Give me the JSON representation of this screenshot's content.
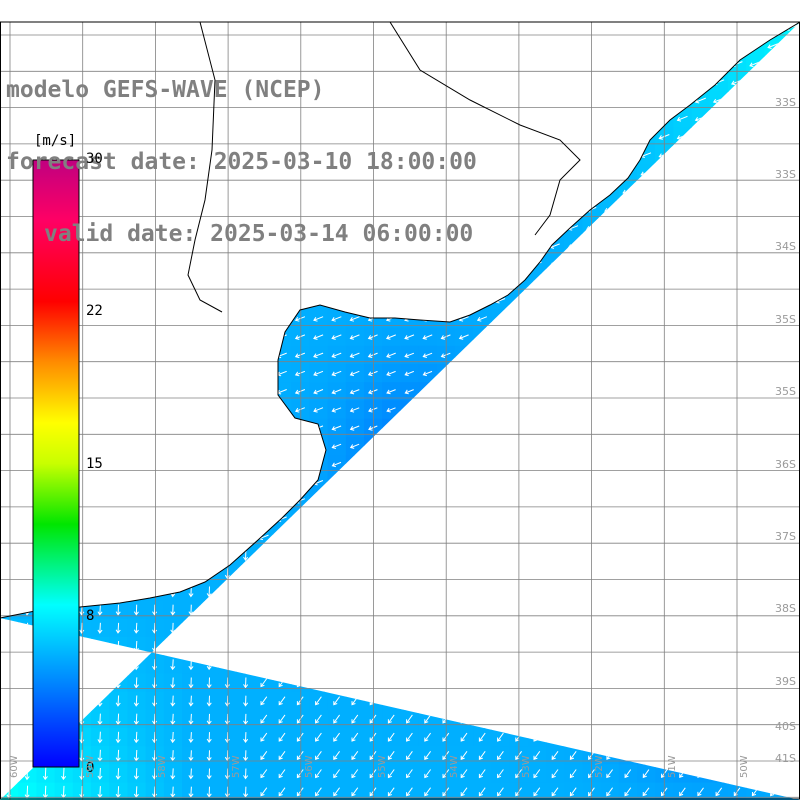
{
  "header": {
    "line1": "modelo GEFS-WAVE (NCEP)",
    "line2": "forecast date: 2025-03-10 18:00:00",
    "line3": "valid date: 2025-03-14 06:00:00"
  },
  "colorbar": {
    "unit": "[m/s]",
    "ticks": [
      "30",
      "22",
      "15",
      "8",
      "0"
    ],
    "tick_values": [
      30,
      22,
      15,
      8,
      0
    ],
    "colors": [
      "#0000ff",
      "#00b4ff",
      "#00ffff",
      "#00ff00",
      "#c0ff00",
      "#ffff00",
      "#ff8000",
      "#ff0000",
      "#ff0064",
      "#c00080"
    ]
  },
  "map": {
    "land_color": "#ffffff",
    "coast_color": "#000000",
    "grid_color": "#808080",
    "arrow_color": "#ffffff",
    "lat_labels": [
      "33S",
      "33S",
      "34S",
      "35S",
      "35S",
      "36S",
      "37S",
      "38S",
      "39S",
      "40S",
      "41S"
    ],
    "lon_labels": [
      "60W",
      "59W",
      "58W",
      "57W",
      "56W",
      "55W",
      "54W",
      "53W",
      "52W",
      "51W",
      "50W"
    ]
  }
}
